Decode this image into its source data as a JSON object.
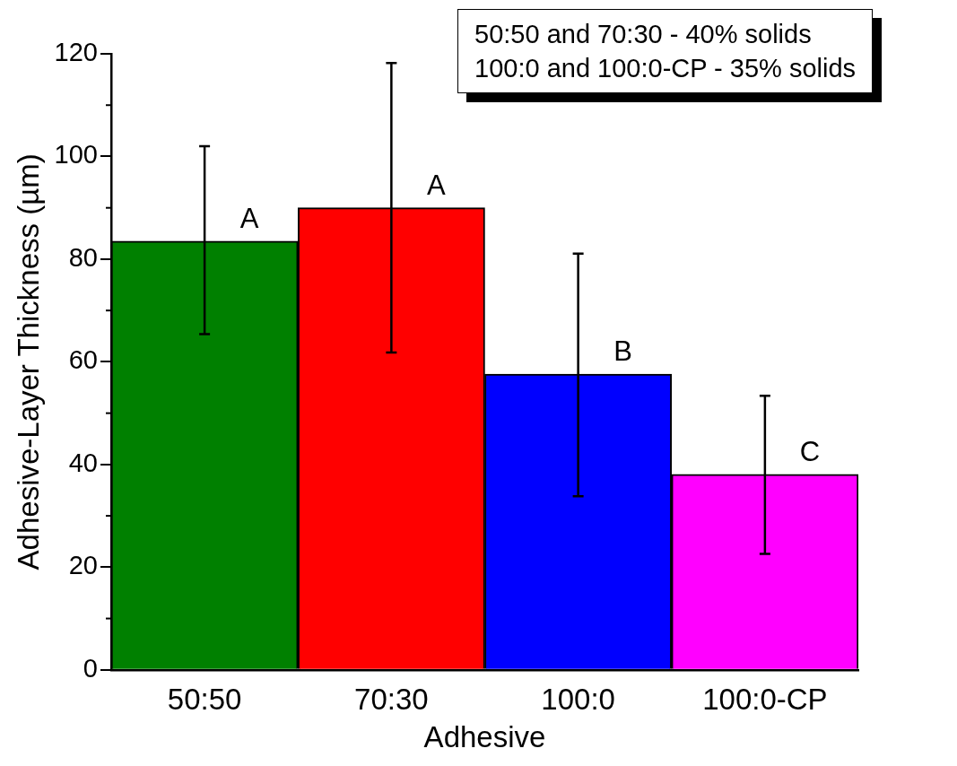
{
  "chart_data": {
    "type": "bar",
    "xlabel": "Adhesive",
    "ylabel": "Adhesive-Layer Thickness (µm)",
    "categories": [
      "50:50",
      "70:30",
      "100:0",
      "100:0-CP"
    ],
    "values": [
      83.5,
      90.0,
      57.6,
      38.1
    ],
    "colors": [
      "#008000",
      "#ff0000",
      "#0000ff",
      "#ff00ff"
    ],
    "errors": [
      [
        65.4,
        102.0
      ],
      [
        61.8,
        118.2
      ],
      [
        33.8,
        81.1
      ],
      [
        22.6,
        53.4
      ]
    ],
    "ylim": [
      0,
      120
    ],
    "yticks": [
      0,
      20,
      40,
      60,
      80,
      100,
      120
    ],
    "grid": false,
    "legend": false,
    "annotations": [
      "50:50 and 70:30 - 40% solids",
      "100:0 and 100:0-CP - 35% solids",
      {
        "text": "A",
        "x": "50:50",
        "y": 83.5
      },
      {
        "text": "A",
        "x": "70:30",
        "y": 90.0
      },
      {
        "text": "B",
        "x": "100:0",
        "y": 57.6
      },
      {
        "text": "C",
        "x": "100:0-CP",
        "y": 38.1
      }
    ]
  }
}
